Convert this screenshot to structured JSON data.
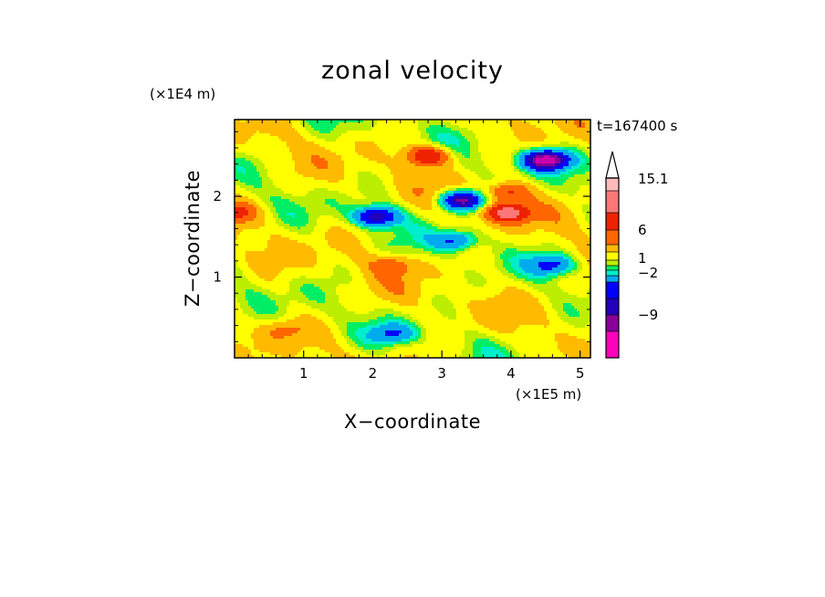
{
  "chart_data": {
    "type": "heatmap",
    "title": "zonal velocity",
    "xlabel": "X−coordinate",
    "ylabel": "Z−coordinate",
    "x_unit": "(×1E5 m)",
    "y_unit": "(×1E4 m)",
    "time_label": "t=167400 s",
    "x_range": [
      0,
      5.15
    ],
    "y_range": [
      0,
      2.95
    ],
    "x_ticks": [
      1,
      2,
      3,
      4,
      5
    ],
    "y_ticks": [
      1,
      2
    ],
    "x_tick_labels": [
      "1",
      "2",
      "3",
      "4",
      "5"
    ],
    "y_tick_labels": [
      "1",
      "2"
    ],
    "colorbar": {
      "colors": [
        "#ff00bb",
        "#cc00aa",
        "#880099",
        "#2200bb",
        "#0000ff",
        "#00aaee",
        "#00eecc",
        "#00ee66",
        "#bbee00",
        "#ffff00",
        "#ffbb00",
        "#ff6600",
        "#ee2200",
        "#ff7777",
        "#ffbbbb"
      ],
      "labels": [
        "15.1",
        "6",
        "1",
        "−2",
        "−9"
      ],
      "max_extension": "#ffffff"
    },
    "features": [
      {
        "x": 4.5,
        "z": 2.45,
        "value": -12
      },
      {
        "x": 3.3,
        "z": 1.95,
        "value": -10
      },
      {
        "x": 2.05,
        "z": 1.75,
        "value": -8
      },
      {
        "x": 3.95,
        "z": 1.8,
        "value": 8
      },
      {
        "x": 2.8,
        "z": 2.5,
        "value": 7
      },
      {
        "x": 3.95,
        "z": 2.05,
        "value": 5
      },
      {
        "x": 0.0,
        "z": 1.8,
        "value": 4
      },
      {
        "x": 4.6,
        "z": 1.15,
        "value": -5
      },
      {
        "x": 3.2,
        "z": 1.45,
        "value": -5
      },
      {
        "x": 2.3,
        "z": 0.3,
        "value": -4
      },
      {
        "x": 2.3,
        "z": 1.15,
        "value": 3
      },
      {
        "x": 0.7,
        "z": 0.35,
        "value": 2
      }
    ]
  }
}
